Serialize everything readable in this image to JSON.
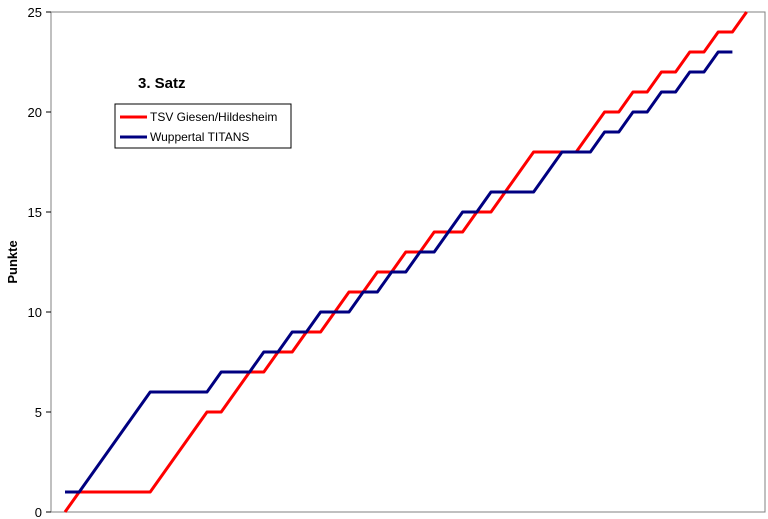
{
  "chart_data": {
    "type": "line",
    "title": "3. Satz",
    "xlabel": "",
    "ylabel": "Punkte",
    "ylim": [
      0,
      25
    ],
    "yticks": [
      0,
      5,
      10,
      15,
      20,
      25
    ],
    "grid": false,
    "legend_position": "top-left",
    "x": [
      0,
      1,
      2,
      3,
      4,
      5,
      6,
      7,
      8,
      9,
      10,
      11,
      12,
      13,
      14,
      15,
      16,
      17,
      18,
      19,
      20,
      21,
      22,
      23,
      24,
      25,
      26,
      27,
      28,
      29,
      30,
      31,
      32,
      33,
      34,
      35,
      36,
      37,
      38,
      39,
      40,
      41,
      42,
      43,
      44,
      45,
      46,
      47
    ],
    "series": [
      {
        "name": "TSV Giesen/Hildesheim",
        "color": "#ff0000",
        "values": [
          0,
          1,
          1,
          1,
          1,
          1,
          1,
          2,
          3,
          4,
          5,
          5,
          6,
          7,
          7,
          8,
          8,
          9,
          9,
          10,
          11,
          11,
          12,
          12,
          13,
          13,
          14,
          14,
          14,
          15,
          15,
          16,
          17,
          18,
          18,
          18,
          18,
          19,
          20,
          20,
          21,
          21,
          22,
          22,
          23,
          23,
          24,
          24
        ]
      },
      {
        "name": "Wuppertal TITANS",
        "color": "#000080",
        "values": [
          1,
          1,
          2,
          3,
          4,
          5,
          6,
          6,
          6,
          6,
          6,
          7,
          7,
          7,
          8,
          8,
          9,
          9,
          10,
          10,
          10,
          11,
          11,
          12,
          12,
          13,
          13,
          14,
          15,
          15,
          16,
          16,
          16,
          16,
          17,
          18,
          18,
          18,
          19,
          19,
          20,
          20,
          21,
          21,
          22,
          22,
          23,
          23
        ]
      }
    ],
    "final_point": {
      "x": 48,
      "y": 25
    }
  }
}
